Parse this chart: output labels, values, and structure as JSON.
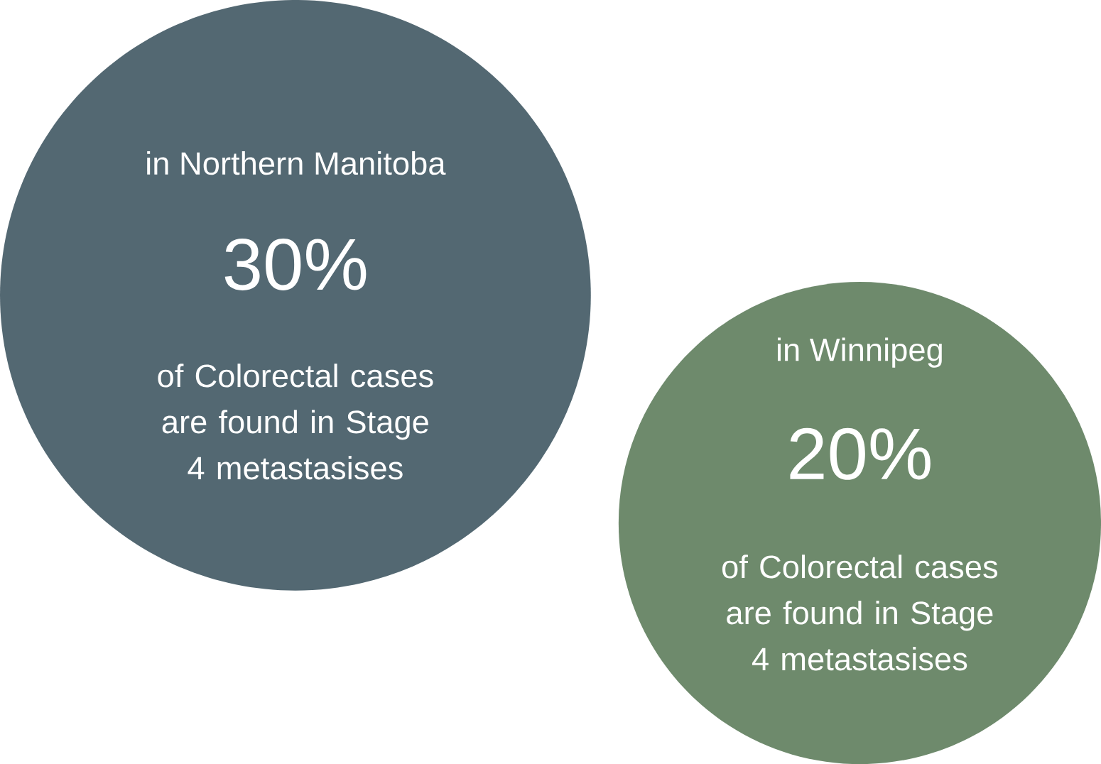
{
  "chart_data": {
    "type": "other",
    "categories": [
      "in Northern Manitoba",
      "in Winnipeg"
    ],
    "values": [
      30,
      20
    ],
    "value_labels": [
      "30%",
      "20%"
    ],
    "colors": [
      "#536872",
      "#6e8a6c"
    ],
    "annotations": [
      "of Colorectal cases are found in Stage 4 metastasises",
      "of Colorectal cases are found in Stage 4 metastasises"
    ]
  }
}
